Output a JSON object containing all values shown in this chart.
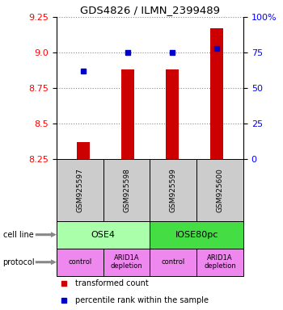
{
  "title": "GDS4826 / ILMN_2399489",
  "samples": [
    "GSM925597",
    "GSM925598",
    "GSM925599",
    "GSM925600"
  ],
  "bar_values": [
    8.37,
    8.88,
    8.88,
    9.17
  ],
  "dot_values": [
    62,
    75,
    75,
    78
  ],
  "ylim_left": [
    8.25,
    9.25
  ],
  "ylim_right": [
    0,
    100
  ],
  "yticks_left": [
    8.25,
    8.5,
    8.75,
    9.0,
    9.25
  ],
  "yticks_right": [
    0,
    25,
    50,
    75,
    100
  ],
  "ytick_labels_right": [
    "0",
    "25",
    "50",
    "75",
    "100%"
  ],
  "bar_color": "#cc0000",
  "dot_color": "#0000cc",
  "cell_line_labels": [
    "OSE4",
    "IOSE80pc"
  ],
  "cell_line_spans": [
    [
      0,
      2
    ],
    [
      2,
      4
    ]
  ],
  "cell_line_color_ose4": "#aaffaa",
  "cell_line_color_iose": "#44dd44",
  "protocol_labels": [
    "control",
    "ARID1A\ndepletion",
    "control",
    "ARID1A\ndepletion"
  ],
  "protocol_color": "#ee88ee",
  "sample_bg_color": "#cccccc",
  "legend_bar_label": "transformed count",
  "legend_dot_label": "percentile rank within the sample",
  "grid_color": "#888888",
  "left_label": "cell line",
  "protocol_label": "protocol",
  "arrow_color": "#888888"
}
